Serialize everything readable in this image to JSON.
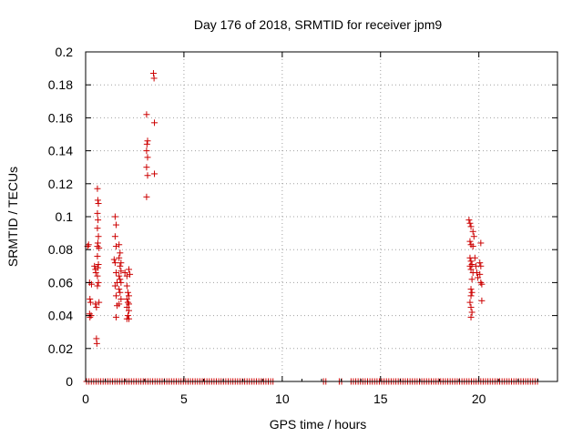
{
  "chart_data": {
    "type": "scatter",
    "title": "Day 176 of 2018, SRMTID for receiver jpm9",
    "xlabel": "GPS time / hours",
    "ylabel": "SRMTID / TECUs",
    "xlim": [
      0,
      24
    ],
    "ylim": [
      0,
      0.2
    ],
    "x_ticks": [
      0,
      5,
      10,
      15,
      20
    ],
    "y_ticks": [
      0,
      0.02,
      0.04,
      0.06,
      0.08,
      0.1,
      0.12,
      0.14,
      0.16,
      0.18,
      0.2
    ],
    "x_tick_labels": [
      "0",
      "5",
      "10",
      "15",
      "20"
    ],
    "y_tick_labels": [
      "0",
      "0.02",
      "0.04",
      "0.06",
      "0.08",
      "0.1",
      "0.12",
      "0.14",
      "0.16",
      "0.18",
      "0.2"
    ],
    "grid": true,
    "marker": "+",
    "series_color": "#cc0000",
    "series": [
      {
        "name": "SRMTID",
        "points": [
          [
            0.1,
            0.082
          ],
          [
            0.15,
            0.083
          ],
          [
            0.2,
            0.06
          ],
          [
            0.22,
            0.05
          ],
          [
            0.25,
            0.048
          ],
          [
            0.2,
            0.041
          ],
          [
            0.22,
            0.039
          ],
          [
            0.28,
            0.04
          ],
          [
            0.3,
            0.059
          ],
          [
            0.45,
            0.07
          ],
          [
            0.5,
            0.068
          ],
          [
            0.52,
            0.066
          ],
          [
            0.55,
            0.026
          ],
          [
            0.57,
            0.023
          ],
          [
            0.5,
            0.047
          ],
          [
            0.55,
            0.045
          ],
          [
            0.6,
            0.117
          ],
          [
            0.62,
            0.11
          ],
          [
            0.65,
            0.108
          ],
          [
            0.6,
            0.102
          ],
          [
            0.63,
            0.098
          ],
          [
            0.6,
            0.093
          ],
          [
            0.65,
            0.088
          ],
          [
            0.62,
            0.084
          ],
          [
            0.6,
            0.082
          ],
          [
            0.68,
            0.081
          ],
          [
            0.6,
            0.076
          ],
          [
            0.65,
            0.071
          ],
          [
            0.62,
            0.069
          ],
          [
            0.6,
            0.064
          ],
          [
            0.65,
            0.06
          ],
          [
            0.6,
            0.058
          ],
          [
            0.68,
            0.048
          ],
          [
            1.5,
            0.1
          ],
          [
            1.55,
            0.095
          ],
          [
            1.5,
            0.088
          ],
          [
            1.55,
            0.082
          ],
          [
            1.45,
            0.074
          ],
          [
            1.5,
            0.072
          ],
          [
            1.55,
            0.066
          ],
          [
            1.6,
            0.06
          ],
          [
            1.5,
            0.058
          ],
          [
            1.55,
            0.052
          ],
          [
            1.6,
            0.046
          ],
          [
            1.55,
            0.039
          ],
          [
            1.7,
            0.083
          ],
          [
            1.75,
            0.078
          ],
          [
            1.7,
            0.075
          ],
          [
            1.8,
            0.072
          ],
          [
            1.75,
            0.07
          ],
          [
            1.8,
            0.067
          ],
          [
            1.7,
            0.064
          ],
          [
            1.75,
            0.062
          ],
          [
            1.8,
            0.06
          ],
          [
            1.7,
            0.056
          ],
          [
            1.75,
            0.054
          ],
          [
            1.8,
            0.05
          ],
          [
            1.7,
            0.047
          ],
          [
            2.0,
            0.066
          ],
          [
            2.1,
            0.064
          ],
          [
            2.2,
            0.068
          ],
          [
            2.25,
            0.065
          ],
          [
            2.1,
            0.058
          ],
          [
            2.15,
            0.054
          ],
          [
            2.2,
            0.052
          ],
          [
            2.1,
            0.05
          ],
          [
            2.15,
            0.048
          ],
          [
            2.2,
            0.047
          ],
          [
            2.1,
            0.045
          ],
          [
            2.2,
            0.043
          ],
          [
            2.15,
            0.04
          ],
          [
            2.1,
            0.038
          ],
          [
            2.2,
            0.038
          ],
          [
            3.1,
            0.162
          ],
          [
            3.15,
            0.146
          ],
          [
            3.12,
            0.144
          ],
          [
            3.1,
            0.14
          ],
          [
            3.15,
            0.136
          ],
          [
            3.1,
            0.13
          ],
          [
            3.15,
            0.125
          ],
          [
            3.1,
            0.112
          ],
          [
            3.45,
            0.187
          ],
          [
            3.48,
            0.184
          ],
          [
            3.5,
            0.157
          ],
          [
            3.5,
            0.126
          ],
          [
            19.5,
            0.098
          ],
          [
            19.55,
            0.096
          ],
          [
            19.6,
            0.094
          ],
          [
            19.55,
            0.085
          ],
          [
            19.7,
            0.091
          ],
          [
            19.75,
            0.088
          ],
          [
            19.6,
            0.083
          ],
          [
            19.7,
            0.082
          ],
          [
            19.55,
            0.075
          ],
          [
            19.6,
            0.073
          ],
          [
            19.65,
            0.071
          ],
          [
            19.55,
            0.07
          ],
          [
            19.6,
            0.068
          ],
          [
            19.7,
            0.066
          ],
          [
            19.65,
            0.062
          ],
          [
            19.6,
            0.056
          ],
          [
            19.65,
            0.054
          ],
          [
            19.6,
            0.052
          ],
          [
            19.55,
            0.048
          ],
          [
            19.6,
            0.045
          ],
          [
            19.65,
            0.042
          ],
          [
            19.6,
            0.039
          ],
          [
            19.8,
            0.075
          ],
          [
            19.85,
            0.07
          ],
          [
            19.9,
            0.066
          ],
          [
            19.95,
            0.063
          ],
          [
            20.1,
            0.084
          ],
          [
            20.05,
            0.072
          ],
          [
            20.1,
            0.07
          ],
          [
            20.05,
            0.065
          ],
          [
            20.1,
            0.06
          ],
          [
            20.15,
            0.059
          ],
          [
            20.15,
            0.049
          ]
        ]
      }
    ]
  }
}
